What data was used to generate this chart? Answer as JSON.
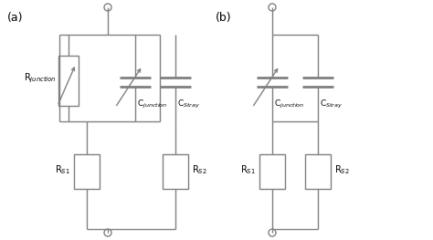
{
  "background_color": "#ffffff",
  "line_color": "#808080",
  "line_width": 1.0,
  "label_a": "(a)",
  "label_b": "(b)",
  "label_Rjunction": "R$_{junction}$",
  "label_Cjunction_a": "C$_{junction}$",
  "label_CStray_a": "C$_{Stray}$",
  "label_RS1_a": "R$_{S1}$",
  "label_RS2_a": "R$_{S2}$",
  "label_Cjunction_b": "C$_{junction}$",
  "label_CStray_b": "C$_{Stray}$",
  "label_RS1_b": "R$_{S1}$",
  "label_RS2_b": "R$_{S2}$",
  "figsize": [
    4.74,
    2.63
  ],
  "dpi": 100
}
